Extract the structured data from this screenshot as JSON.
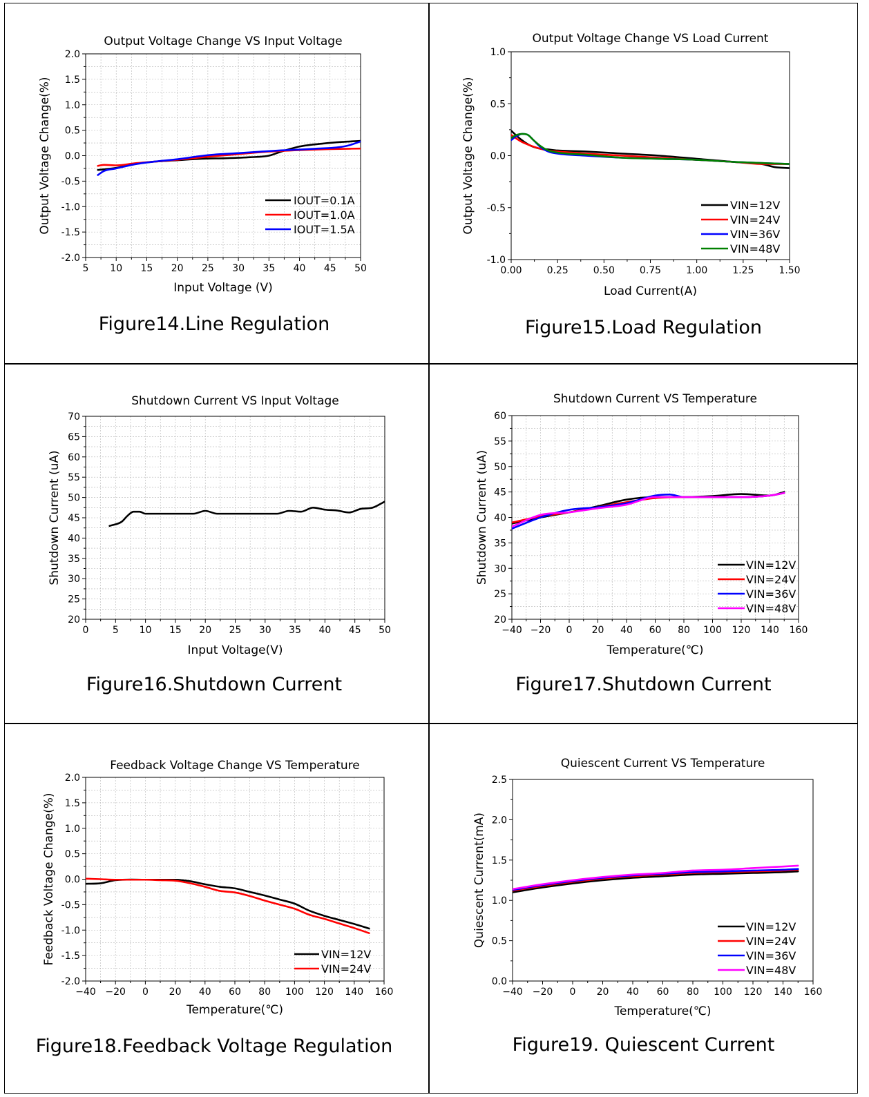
{
  "figures": [
    {
      "caption": "Figure14.Line Regulation",
      "chart_data": {
        "type": "line",
        "title": "Output Voltage Change VS Input Voltage",
        "xlabel": "Input Voltage (V)",
        "ylabel": "Output Voltage Change(%)",
        "xlim": [
          5,
          50
        ],
        "ylim": [
          -2.0,
          2.0
        ],
        "xticks": [
          "5",
          "10",
          "15",
          "20",
          "25",
          "30",
          "35",
          "40",
          "45",
          "50"
        ],
        "yticks": [
          "-2.0",
          "-1.5",
          "-1.0",
          "-0.5",
          "0.0",
          "0.5",
          "1.0",
          "1.5",
          "2.0"
        ],
        "grid": true,
        "legend_position": "bottom-right",
        "series": [
          {
            "name": "IOUT=0.1A",
            "color": "#000000",
            "x": [
              7,
              10,
              13,
              16,
              20,
              24,
              28,
              32,
              35,
              37,
              40,
              44,
              47,
              50
            ],
            "y": [
              -0.28,
              -0.24,
              -0.16,
              -0.12,
              -0.09,
              -0.06,
              -0.05,
              -0.03,
              0.0,
              0.08,
              0.18,
              0.24,
              0.27,
              0.29
            ]
          },
          {
            "name": "IOUT=1.0A",
            "color": "#ff0000",
            "x": [
              7,
              8,
              10,
              13,
              16,
              20,
              25,
              30,
              35,
              40,
              45,
              50
            ],
            "y": [
              -0.2,
              -0.18,
              -0.19,
              -0.15,
              -0.12,
              -0.08,
              -0.02,
              0.03,
              0.08,
              0.11,
              0.13,
              0.14
            ]
          },
          {
            "name": "IOUT=1.5A",
            "color": "#0000ff",
            "x": [
              7,
              8,
              10,
              13,
              16,
              20,
              25,
              30,
              35,
              38,
              40,
              43,
              46,
              48,
              50
            ],
            "y": [
              -0.38,
              -0.3,
              -0.25,
              -0.17,
              -0.12,
              -0.07,
              0.01,
              0.05,
              0.09,
              0.11,
              0.12,
              0.14,
              0.16,
              0.2,
              0.28
            ]
          }
        ]
      }
    },
    {
      "caption": "Figure15.Load Regulation",
      "chart_data": {
        "type": "line",
        "title": "Output Voltage Change VS Load Current",
        "xlabel": "Load Current(A)",
        "ylabel": "Output Voltage Change(%)",
        "xlim": [
          0,
          1.5
        ],
        "ylim": [
          -1.0,
          1.0
        ],
        "xticks": [
          "0.00",
          "0.25",
          "0.50",
          "0.75",
          "1.00",
          "1.25",
          "1.50"
        ],
        "yticks": [
          "-1.0",
          "-0.5",
          "0.0",
          "0.5",
          "1.0"
        ],
        "grid": false,
        "legend_position": "bottom-right",
        "series": [
          {
            "name": "VIN=12V",
            "color": "#000000",
            "x": [
              0,
              0.05,
              0.1,
              0.15,
              0.2,
              0.25,
              0.4,
              0.6,
              0.8,
              1.0,
              1.2,
              1.35,
              1.42,
              1.5
            ],
            "y": [
              0.24,
              0.16,
              0.1,
              0.07,
              0.06,
              0.05,
              0.04,
              0.02,
              0.0,
              -0.03,
              -0.06,
              -0.08,
              -0.11,
              -0.12
            ]
          },
          {
            "name": "VIN=24V",
            "color": "#ff0000",
            "x": [
              0,
              0.05,
              0.1,
              0.15,
              0.2,
              0.25,
              0.4,
              0.6,
              0.8,
              1.0,
              1.2,
              1.35,
              1.5
            ],
            "y": [
              0.2,
              0.14,
              0.1,
              0.07,
              0.05,
              0.04,
              0.02,
              0.0,
              -0.02,
              -0.04,
              -0.06,
              -0.08,
              -0.08
            ]
          },
          {
            "name": "VIN=36V",
            "color": "#0000ff",
            "x": [
              0,
              0.03,
              0.06,
              0.09,
              0.12,
              0.16,
              0.2,
              0.25,
              0.4,
              0.6,
              0.8,
              1.0,
              1.2,
              1.5
            ],
            "y": [
              0.15,
              0.19,
              0.21,
              0.2,
              0.15,
              0.08,
              0.04,
              0.02,
              0.0,
              -0.02,
              -0.03,
              -0.04,
              -0.06,
              -0.08
            ]
          },
          {
            "name": "VIN=48V",
            "color": "#008000",
            "x": [
              0,
              0.03,
              0.06,
              0.09,
              0.12,
              0.16,
              0.2,
              0.25,
              0.4,
              0.6,
              0.8,
              1.0,
              1.2,
              1.5
            ],
            "y": [
              0.17,
              0.2,
              0.21,
              0.2,
              0.15,
              0.09,
              0.05,
              0.03,
              0.01,
              -0.02,
              -0.03,
              -0.04,
              -0.06,
              -0.08
            ]
          }
        ]
      }
    },
    {
      "caption": "Figure16.Shutdown Current",
      "chart_data": {
        "type": "line",
        "title": "Shutdown Current VS Input Voltage",
        "xlabel": "Input Voltage(V)",
        "ylabel": "Shutdown Current (uA)",
        "xlim": [
          0,
          50
        ],
        "ylim": [
          20,
          70
        ],
        "xticks": [
          "0",
          "5",
          "10",
          "15",
          "20",
          "25",
          "30",
          "35",
          "40",
          "45",
          "50"
        ],
        "yticks": [
          "20",
          "25",
          "30",
          "35",
          "40",
          "45",
          "50",
          "55",
          "60",
          "65",
          "70"
        ],
        "grid": true,
        "legend_position": "none",
        "series": [
          {
            "name": "",
            "color": "#000000",
            "x": [
              4,
              6,
              7,
              8,
              9,
              10,
              12,
              15,
              18,
              20,
              22,
              25,
              30,
              32,
              34,
              36,
              38,
              40,
              42,
              44,
              46,
              48,
              50
            ],
            "y": [
              43,
              44,
              45.5,
              46.5,
              46.5,
              46,
              46,
              46,
              46,
              46.7,
              46,
              46,
              46,
              46,
              46.7,
              46.5,
              47.5,
              47,
              46.8,
              46.3,
              47.2,
              47.5,
              49
            ]
          }
        ]
      }
    },
    {
      "caption": "Figure17.Shutdown Current",
      "chart_data": {
        "type": "line",
        "title": "Shutdown Current VS Temperature",
        "xlabel": "Temperature(℃)",
        "ylabel": "Shutdown Current (uA)",
        "xlim": [
          -40,
          160
        ],
        "ylim": [
          20,
          60
        ],
        "xticks": [
          "−40",
          "−20",
          "0",
          "20",
          "40",
          "60",
          "80",
          "100",
          "120",
          "140",
          "160"
        ],
        "yticks": [
          "20",
          "25",
          "30",
          "35",
          "40",
          "45",
          "50",
          "55",
          "60"
        ],
        "grid": true,
        "legend_position": "bottom-right",
        "series": [
          {
            "name": "VIN=12V",
            "color": "#000000",
            "x": [
              -40,
              -20,
              0,
              20,
              40,
              60,
              80,
              100,
              120,
              140,
              150
            ],
            "y": [
              38.8,
              40,
              41,
              42.2,
              43.5,
              44,
              44,
              44.2,
              44.6,
              44.3,
              45
            ]
          },
          {
            "name": "VIN=24V",
            "color": "#ff0000",
            "x": [
              -40,
              -20,
              0,
              20,
              40,
              60,
              80,
              100,
              120,
              140,
              150
            ],
            "y": [
              39,
              40.2,
              41,
              42,
              43,
              43.8,
              44,
              44,
              44,
              44.3,
              44.8
            ]
          },
          {
            "name": "VIN=36V",
            "color": "#0000ff",
            "x": [
              -40,
              -20,
              0,
              20,
              40,
              60,
              70,
              80,
              100,
              120,
              140,
              150
            ],
            "y": [
              37.8,
              40,
              41.5,
              42,
              42.8,
              44.3,
              44.5,
              44,
              44,
              44,
              44.3,
              44.8
            ]
          },
          {
            "name": "VIN=48V",
            "color": "#ff00ff",
            "x": [
              -40,
              -20,
              0,
              20,
              40,
              60,
              80,
              100,
              120,
              140,
              150
            ],
            "y": [
              38.2,
              40.5,
              41,
              41.8,
              42.5,
              44,
              44,
              44,
              44,
              44.3,
              44.8
            ]
          }
        ]
      }
    },
    {
      "caption": "Figure18.Feedback Voltage Regulation",
      "chart_data": {
        "type": "line",
        "title": "Feedback Voltage Change VS Temperature",
        "xlabel": "Temperature(℃)",
        "ylabel": "Feedback Voltage Change(%)",
        "xlim": [
          -40,
          160
        ],
        "ylim": [
          -2.0,
          2.0
        ],
        "xticks": [
          "−40",
          "−20",
          "0",
          "20",
          "40",
          "60",
          "80",
          "100",
          "120",
          "140",
          "160"
        ],
        "yticks": [
          "-2.0",
          "-1.5",
          "-1.0",
          "-0.5",
          "0.0",
          "0.5",
          "1.0",
          "1.5",
          "2.0"
        ],
        "grid": true,
        "legend_position": "bottom-right",
        "series": [
          {
            "name": "VIN=12V",
            "color": "#000000",
            "x": [
              -40,
              -30,
              -20,
              0,
              20,
              30,
              40,
              50,
              60,
              70,
              80,
              90,
              100,
              110,
              120,
              130,
              140,
              150
            ],
            "y": [
              -0.09,
              -0.08,
              -0.02,
              -0.01,
              -0.01,
              -0.04,
              -0.1,
              -0.15,
              -0.18,
              -0.25,
              -0.32,
              -0.4,
              -0.48,
              -0.62,
              -0.72,
              -0.8,
              -0.88,
              -0.97
            ]
          },
          {
            "name": "VIN=24V",
            "color": "#ff0000",
            "x": [
              -40,
              -30,
              -20,
              0,
              10,
              20,
              30,
              40,
              50,
              60,
              70,
              80,
              90,
              100,
              110,
              120,
              130,
              140,
              150
            ],
            "y": [
              0.01,
              0.0,
              -0.01,
              -0.01,
              -0.02,
              -0.03,
              -0.08,
              -0.15,
              -0.23,
              -0.26,
              -0.33,
              -0.42,
              -0.5,
              -0.58,
              -0.7,
              -0.78,
              -0.87,
              -0.96,
              -1.06
            ]
          }
        ]
      }
    },
    {
      "caption": "Figure19. Quiescent Current",
      "chart_data": {
        "type": "line",
        "title": "Quiescent Current VS Temperature",
        "xlabel": "Temperature(℃)",
        "ylabel": "Quiescent Current(mA)",
        "xlim": [
          -40,
          160
        ],
        "ylim": [
          0,
          2.5
        ],
        "xticks": [
          "−40",
          "−20",
          "0",
          "20",
          "40",
          "60",
          "80",
          "100",
          "120",
          "140",
          "160"
        ],
        "yticks": [
          "0.0",
          "0.5",
          "1.0",
          "1.5",
          "2.0",
          "2.5"
        ],
        "grid": false,
        "legend_position": "bottom-right",
        "series": [
          {
            "name": "VIN=12V",
            "color": "#000000",
            "x": [
              -40,
              -20,
              0,
              20,
              40,
              60,
              80,
              100,
              120,
              140,
              150
            ],
            "y": [
              1.1,
              1.16,
              1.21,
              1.25,
              1.28,
              1.3,
              1.32,
              1.33,
              1.34,
              1.35,
              1.36
            ]
          },
          {
            "name": "VIN=24V",
            "color": "#ff0000",
            "x": [
              -40,
              -20,
              0,
              20,
              40,
              60,
              80,
              100,
              120,
              140,
              150
            ],
            "y": [
              1.12,
              1.18,
              1.23,
              1.27,
              1.3,
              1.32,
              1.34,
              1.35,
              1.36,
              1.37,
              1.38
            ]
          },
          {
            "name": "VIN=36V",
            "color": "#0000ff",
            "x": [
              -40,
              -20,
              0,
              20,
              40,
              60,
              80,
              100,
              120,
              140,
              150
            ],
            "y": [
              1.13,
              1.19,
              1.24,
              1.28,
              1.31,
              1.33,
              1.35,
              1.36,
              1.37,
              1.38,
              1.39
            ]
          },
          {
            "name": "VIN=48V",
            "color": "#ff00ff",
            "x": [
              -40,
              -20,
              0,
              20,
              40,
              60,
              80,
              100,
              120,
              140,
              150
            ],
            "y": [
              1.14,
              1.2,
              1.25,
              1.29,
              1.32,
              1.34,
              1.37,
              1.38,
              1.4,
              1.42,
              1.43
            ]
          }
        ]
      }
    }
  ]
}
